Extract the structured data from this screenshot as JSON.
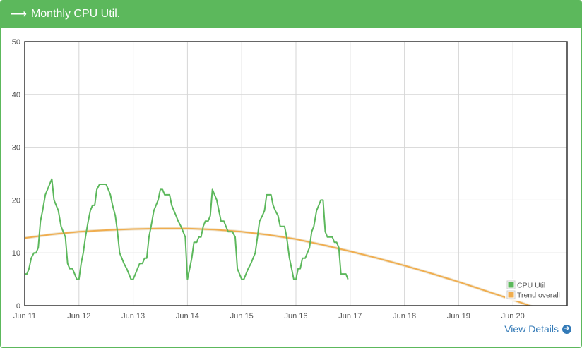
{
  "panel": {
    "title": "Monthly CPU Util.",
    "title_icon": "arrow-right-icon",
    "view_details": "View Details",
    "view_details_icon": "arrow-circle-right-icon",
    "accent": "#5cb85c"
  },
  "chart_data": {
    "type": "line",
    "title": "",
    "xlabel": "",
    "ylabel": "",
    "ylim": [
      0,
      50
    ],
    "yticks": [
      "0",
      "10",
      "20",
      "30",
      "40",
      "50"
    ],
    "xlim": [
      0,
      10
    ],
    "xticks": [
      "Jun 11",
      "Jun 12",
      "Jun 13",
      "Jun 14",
      "Jun 15",
      "Jun 16",
      "Jun 17",
      "Jun 18",
      "Jun 19",
      "Jun 20"
    ],
    "grid": true,
    "legend": "bottom-right",
    "series": [
      {
        "name": "CPU Util",
        "color": "#5cb85c",
        "x": [
          0,
          0.04,
          0.08,
          0.12,
          0.17,
          0.21,
          0.25,
          0.29,
          0.33,
          0.38,
          0.42,
          0.46,
          0.5,
          0.54,
          0.58,
          0.62,
          0.67,
          0.71,
          0.75,
          0.79,
          0.83,
          0.88,
          0.92,
          0.96,
          1,
          1.04,
          1.08,
          1.12,
          1.17,
          1.21,
          1.25,
          1.29,
          1.33,
          1.38,
          1.42,
          1.46,
          1.5,
          1.54,
          1.58,
          1.62,
          1.67,
          1.71,
          1.75,
          1.79,
          1.83,
          1.88,
          1.92,
          1.96,
          2,
          2.04,
          2.08,
          2.12,
          2.17,
          2.21,
          2.25,
          2.29,
          2.33,
          2.38,
          2.42,
          2.46,
          2.5,
          2.54,
          2.58,
          2.62,
          2.67,
          2.71,
          2.75,
          2.79,
          2.83,
          2.88,
          2.92,
          2.96,
          3,
          3.04,
          3.08,
          3.12,
          3.17,
          3.21,
          3.25,
          3.29,
          3.33,
          3.38,
          3.42,
          3.46,
          3.5,
          3.54,
          3.58,
          3.62,
          3.67,
          3.71,
          3.75,
          3.79,
          3.83,
          3.88,
          3.92,
          3.96,
          4,
          4.04,
          4.08,
          4.12,
          4.17,
          4.21,
          4.25,
          4.29,
          4.33,
          4.38,
          4.42,
          4.46,
          4.5,
          4.54,
          4.58,
          4.62,
          4.67,
          4.71,
          4.75,
          4.79,
          4.83,
          4.88,
          4.92,
          4.96,
          5,
          5.04,
          5.08,
          5.12,
          5.17,
          5.21,
          5.25,
          5.29,
          5.33,
          5.38,
          5.42,
          5.46,
          5.5,
          5.54,
          5.58,
          5.62,
          5.67,
          5.71,
          5.75,
          5.79,
          5.83,
          5.88,
          5.92,
          5.96
        ],
        "values": [
          6,
          6,
          7,
          9,
          10,
          10,
          11,
          16,
          18,
          21,
          22,
          23,
          24,
          20,
          19,
          18,
          15,
          14,
          13,
          8,
          7,
          7,
          6,
          5,
          5,
          8,
          10,
          13,
          16,
          18,
          19,
          19,
          22,
          23,
          23,
          23,
          23,
          22,
          21,
          19,
          17,
          14,
          10,
          9,
          8,
          7,
          6,
          5,
          5,
          6,
          7,
          8,
          8,
          9,
          9,
          13,
          15,
          18,
          19,
          20,
          22,
          22,
          21,
          21,
          21,
          19,
          18,
          17,
          16,
          15,
          14,
          13,
          5,
          7,
          9,
          12,
          12,
          13,
          13,
          15,
          16,
          16,
          17,
          22,
          21,
          20,
          18,
          16,
          16,
          15,
          14,
          14,
          14,
          13,
          7,
          6,
          5,
          5,
          6,
          7,
          8,
          9,
          10,
          13,
          16,
          17,
          18,
          21,
          21,
          21,
          19,
          18,
          17,
          15,
          15,
          15,
          13,
          9,
          7,
          5,
          5,
          7,
          7,
          9,
          9,
          10,
          11,
          14,
          15,
          18,
          19,
          20,
          20,
          14,
          13,
          13,
          13,
          12,
          12,
          11,
          6,
          6,
          6,
          5
        ]
      },
      {
        "name": "Trend overall",
        "color": "#f0ad4e",
        "x": [
          0,
          0.5,
          1,
          1.5,
          2,
          2.5,
          3,
          3.5,
          4,
          4.5,
          5,
          5.5,
          6,
          6.5,
          7,
          7.5,
          8,
          8.5,
          9,
          9.5,
          10
        ],
        "values": [
          12.8,
          13.5,
          14,
          14.3,
          14.5,
          14.6,
          14.6,
          14.4,
          14,
          13.4,
          12.6,
          11.5,
          10.3,
          9,
          7.6,
          6.1,
          4.5,
          2.8,
          1.1,
          -0.7,
          -2.6
        ]
      }
    ]
  }
}
